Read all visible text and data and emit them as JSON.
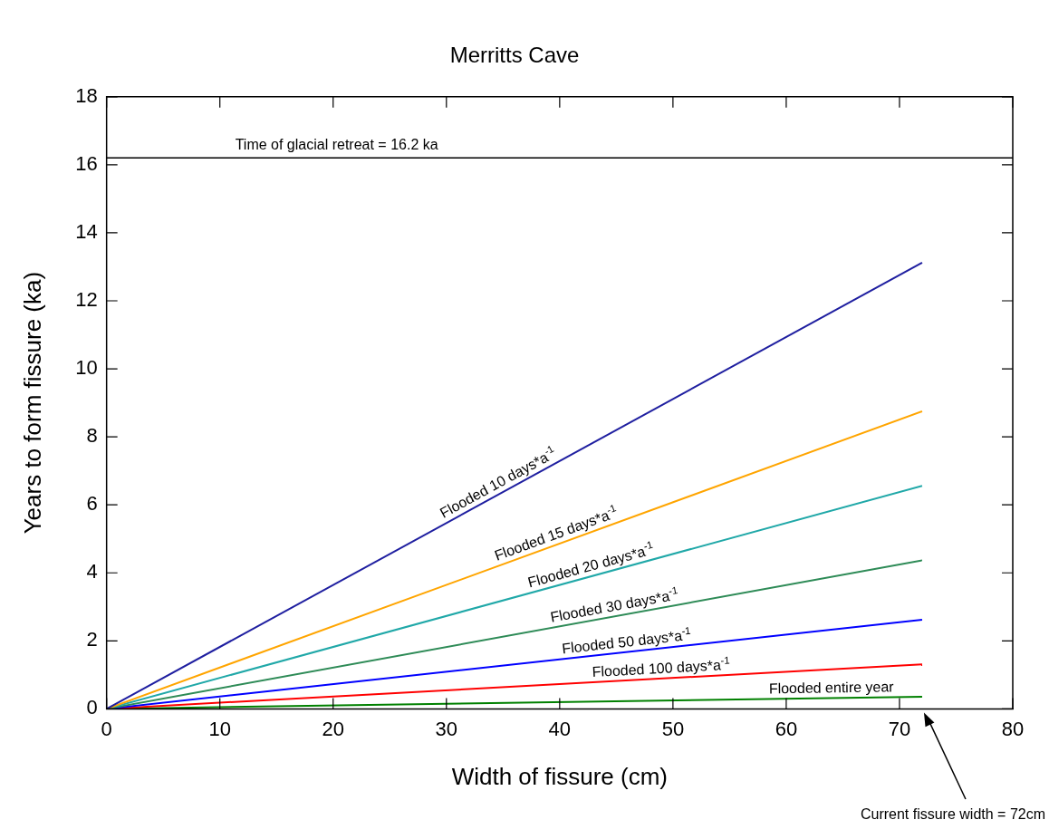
{
  "chart_data": {
    "type": "line",
    "title": "Merritts Cave",
    "xlabel": "Width of fissure (cm)",
    "ylabel": "Years to form fissure (ka)",
    "xlim": [
      0,
      80
    ],
    "xticks": [
      0,
      10,
      20,
      30,
      40,
      50,
      60,
      70,
      80
    ],
    "ylim": [
      0,
      18
    ],
    "yticks": [
      0,
      2,
      4,
      6,
      8,
      10,
      12,
      14,
      16,
      18
    ],
    "grid": false,
    "legend": false,
    "marker": "none",
    "line_style": "solid",
    "x": [
      0,
      72
    ],
    "series": [
      {
        "name": "Flooded 10 days*a$^{-1}$",
        "color": "#1f1fa0",
        "values": [
          0,
          13.12
        ]
      },
      {
        "name": "Flooded 15 days*a$^{-1}$",
        "color": "#ffa500",
        "values": [
          0,
          8.75
        ]
      },
      {
        "name": "Flooded 20 days*a$^{-1}$",
        "color": "#20a8a8",
        "values": [
          0,
          6.56
        ]
      },
      {
        "name": "Flooded 30 days*a$^{-1}$",
        "color": "#2e8b57",
        "values": [
          0,
          4.37
        ]
      },
      {
        "name": "Flooded 50 days*a$^{-1}$",
        "color": "#0000ff",
        "values": [
          0,
          2.62
        ]
      },
      {
        "name": "Flooded 100 days*a$^{-1}$",
        "color": "#ff0000",
        "values": [
          0,
          1.31
        ]
      },
      {
        "name": "Flooded entire year",
        "color": "#008000",
        "values": [
          0,
          0.36
        ]
      }
    ],
    "ref_lines": [
      {
        "axis": "y",
        "value": 16.2,
        "label": "Time of glacial retreat = 16.2 ka",
        "color": "#000000"
      }
    ],
    "annotations": [
      "Current fissure width = 72cm"
    ]
  }
}
